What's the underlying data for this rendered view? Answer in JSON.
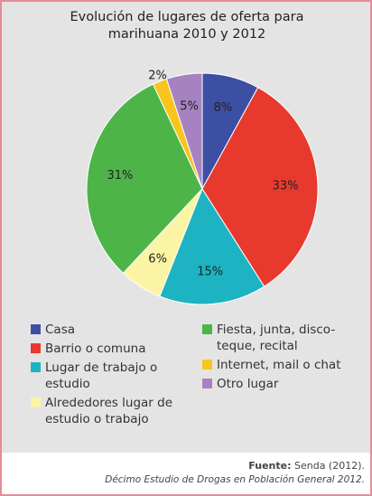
{
  "chart_data": {
    "type": "pie",
    "title": "Evolución de lugares de oferta para marihuana 2010 y 2012",
    "categories": [
      "Casa",
      "Barrio o comuna",
      "Lugar de trabajo o estudio",
      "Alrededores lugar de estudio o trabajo",
      "Fiesta, junta, disco-teque, recital",
      "Internet, mail o chat",
      "Otro lugar"
    ],
    "values": [
      8,
      33,
      15,
      6,
      31,
      2,
      5
    ],
    "value_labels": [
      "8%",
      "33%",
      "15%",
      "6%",
      "31%",
      "2%",
      "5%"
    ],
    "colors": [
      "#3d4fa3",
      "#e8392f",
      "#1db3c2",
      "#fbf4a4",
      "#4db548",
      "#f7c51e",
      "#a683c0"
    ],
    "legend_columns": [
      [
        0,
        1,
        2,
        3
      ],
      [
        4,
        5,
        6
      ]
    ],
    "source_label": "Fuente:",
    "source": "Senda (2012).",
    "note": "Décimo Estudio de Drogas en Población General 2012."
  }
}
